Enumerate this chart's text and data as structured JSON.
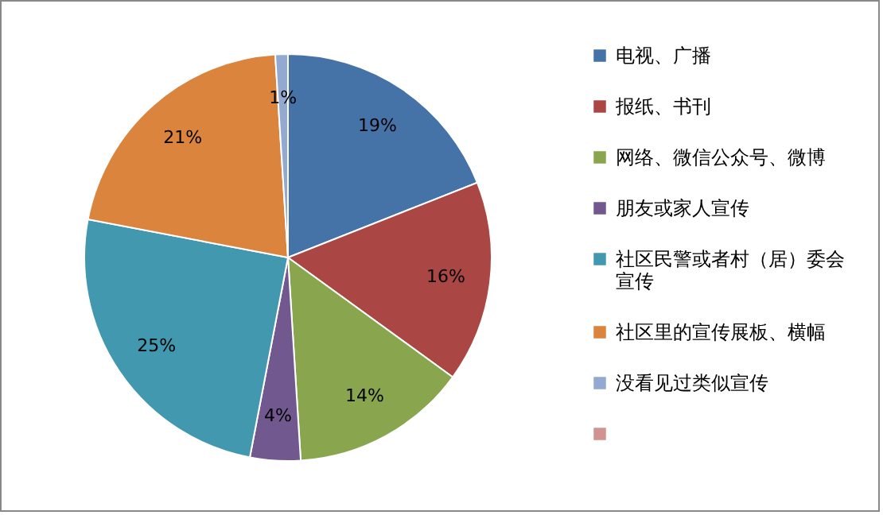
{
  "chart_data": {
    "type": "pie",
    "categories": [
      "电视、广播",
      "报纸、书刊",
      "网络、微信公众号、微博",
      "朋友或家人宣传",
      "社区民警或者村（居）委会宣传",
      "社区里的宣传展板、横幅",
      "没看见过类似宣传",
      null
    ],
    "values": [
      19,
      16,
      14,
      4,
      25,
      21,
      1,
      0
    ],
    "value_labels": [
      "19%",
      "16%",
      "14%",
      "4%",
      "25%",
      "21%",
      "1%",
      null
    ],
    "colors": [
      "#4572a7",
      "#aa4643",
      "#89a54e",
      "#71588f",
      "#4198af",
      "#db843d",
      "#93a9cf",
      "#d19392"
    ],
    "legend": "right"
  }
}
